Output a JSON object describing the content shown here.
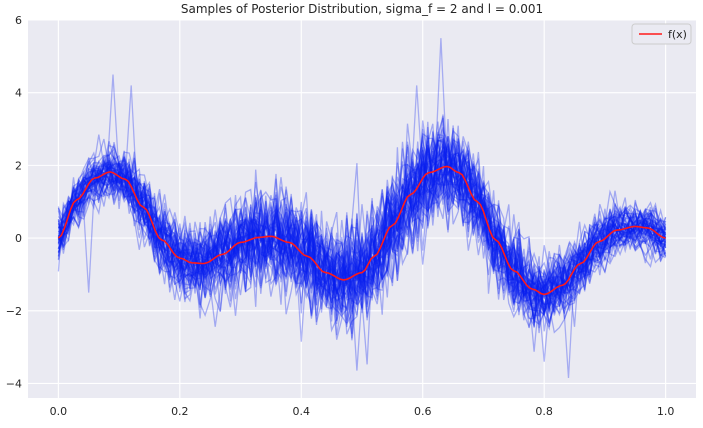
{
  "chart_data": {
    "type": "line",
    "title": "Samples of Posterior Distribution, sigma_f = 2 and l = 0.001",
    "xlabel": "",
    "ylabel": "",
    "xlim": [
      -0.05,
      1.05
    ],
    "ylim": [
      -4.4,
      6
    ],
    "xticks": [
      0.0,
      0.2,
      0.4,
      0.6,
      0.8,
      1.0
    ],
    "xtick_labels": [
      "0.0",
      "0.2",
      "0.4",
      "0.6",
      "0.8",
      "1.0"
    ],
    "yticks": [
      -4,
      -2,
      0,
      2,
      4,
      6
    ],
    "ytick_labels": [
      "−4",
      "−2",
      "0",
      "2",
      "4",
      "6"
    ],
    "grid": true,
    "legend_position": "upper-right",
    "colors": {
      "background": "#eaeaf2",
      "grid": "#ffffff",
      "samples": "#0a1ef0",
      "mean_line": "#ff1a1a"
    },
    "series": [
      {
        "name": "f(x)",
        "x": [
          0.0,
          0.03,
          0.06,
          0.085,
          0.11,
          0.14,
          0.17,
          0.2,
          0.22,
          0.24,
          0.27,
          0.3,
          0.33,
          0.35,
          0.38,
          0.41,
          0.44,
          0.47,
          0.5,
          0.52,
          0.55,
          0.58,
          0.61,
          0.64,
          0.66,
          0.69,
          0.72,
          0.75,
          0.78,
          0.8,
          0.83,
          0.86,
          0.89,
          0.92,
          0.95,
          0.97,
          1.0
        ],
        "y": [
          0.0,
          1.05,
          1.65,
          1.82,
          1.62,
          0.85,
          -0.05,
          -0.55,
          -0.68,
          -0.7,
          -0.45,
          -0.12,
          0.02,
          0.05,
          -0.12,
          -0.5,
          -0.95,
          -1.15,
          -0.95,
          -0.5,
          0.35,
          1.2,
          1.8,
          1.97,
          1.8,
          1.0,
          -0.05,
          -0.9,
          -1.4,
          -1.55,
          -1.3,
          -0.7,
          -0.1,
          0.22,
          0.32,
          0.28,
          0.0
        ]
      }
    ],
    "samples": {
      "count": 60,
      "noise_std": 0.65,
      "extreme_values": {
        "max": 5.5,
        "min": -3.85
      }
    }
  }
}
